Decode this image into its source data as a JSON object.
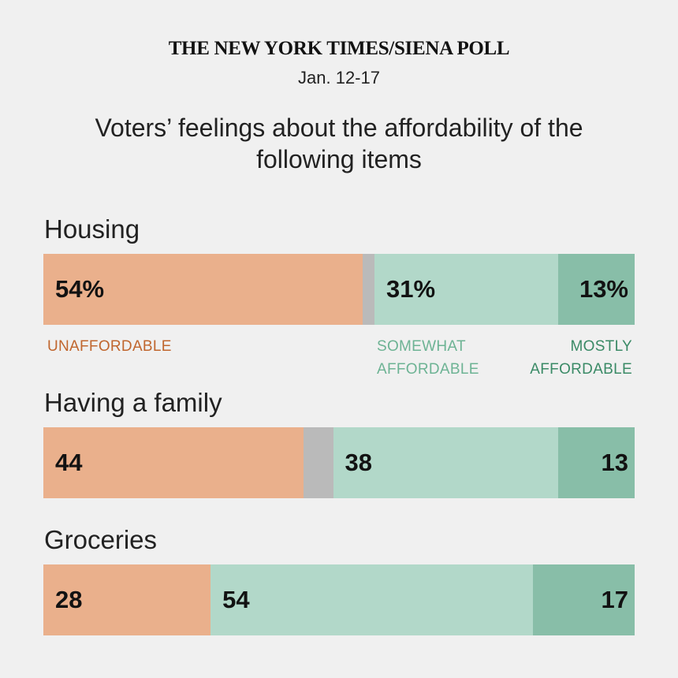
{
  "source": "THE NEW YORK TIMES/SIENA POLL",
  "date": "Jan. 12-17",
  "title": "Voters’ feelings about the affordability of the following items",
  "colors": {
    "unaffordable": "#eab08c",
    "other": "#bababa",
    "somewhat": "#b2d8c9",
    "mostly": "#88bea8",
    "unaffordable_text": "#c0662e",
    "somewhat_text": "#6db394",
    "mostly_text": "#3a8a66",
    "background": "#f0f0f0"
  },
  "chart_data": {
    "type": "bar",
    "stacked": true,
    "orientation": "horizontal",
    "title": "Voters’ feelings about the affordability of the following items",
    "categories": [
      "Housing",
      "Having a family",
      "Groceries"
    ],
    "series": [
      {
        "name": "UNAFFORDABLE",
        "values": [
          54,
          44,
          28
        ],
        "labels": [
          "54%",
          "44",
          "28"
        ]
      },
      {
        "values": [
          2,
          5,
          0
        ],
        "labels": [
          "",
          "",
          ""
        ]
      },
      {
        "name": "SOMEWHAT AFFORDABLE",
        "values": [
          31,
          38,
          54
        ],
        "labels": [
          "31%",
          "38",
          "54"
        ]
      },
      {
        "name": "MOSTLY AFFORDABLE",
        "values": [
          13,
          13,
          17
        ],
        "labels": [
          "13%",
          "13",
          "17"
        ]
      }
    ],
    "legend": {
      "unaffordable": "UNAFFORDABLE",
      "somewhat_line1": "SOMEWHAT",
      "somewhat_line2": "AFFORDABLE",
      "mostly_line1": "MOSTLY",
      "mostly_line2": "AFFORDABLE"
    },
    "legend_placement": "below first bar"
  }
}
